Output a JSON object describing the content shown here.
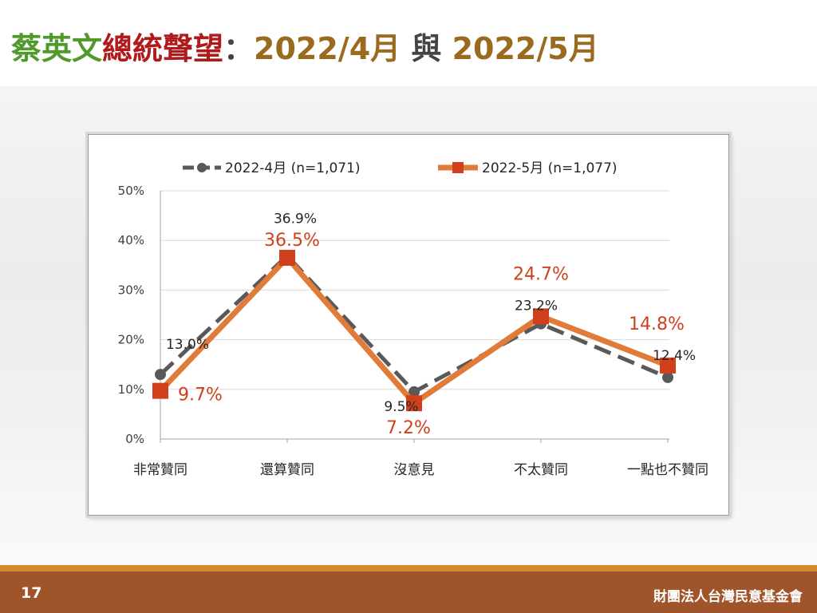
{
  "header": {
    "title_name": "蔡英文",
    "title_topic": "總統聲望",
    "title_colon": "：",
    "title_period1": "2022/4月",
    "title_conj": " 與 ",
    "title_period2": "2022/5月"
  },
  "footer": {
    "page_number": "17",
    "organization": "財團法人台灣民意基金會"
  },
  "colors": {
    "series_april": "#595959",
    "series_may": "#e07b39",
    "marker_may": "#d0401c",
    "label_may": "#d0401c"
  },
  "chart_data": {
    "type": "line",
    "categories": [
      "非常贊同",
      "還算贊同",
      "沒意見",
      "不太贊同",
      "一點也不贊同"
    ],
    "ylim": [
      0,
      50
    ],
    "yticks": [
      0,
      10,
      20,
      30,
      40,
      50
    ],
    "ytick_labels": [
      "0%",
      "10%",
      "20%",
      "30%",
      "40%",
      "50%"
    ],
    "grid": true,
    "legend_position": "top",
    "series": [
      {
        "name": "2022-4月  (n=1,071)",
        "values": [
          13.0,
          36.9,
          9.5,
          23.2,
          12.4
        ],
        "labels": [
          "13.0%",
          "36.9%",
          "9.5%",
          "23.2%",
          "12.4%"
        ],
        "style": "dashed",
        "marker": "circle"
      },
      {
        "name": "2022-5月  (n=1,077)",
        "values": [
          9.7,
          36.5,
          7.2,
          24.7,
          14.8
        ],
        "labels": [
          "9.7%",
          "36.5%",
          "7.2%",
          "24.7%",
          "14.8%"
        ],
        "style": "solid",
        "marker": "square"
      }
    ]
  }
}
